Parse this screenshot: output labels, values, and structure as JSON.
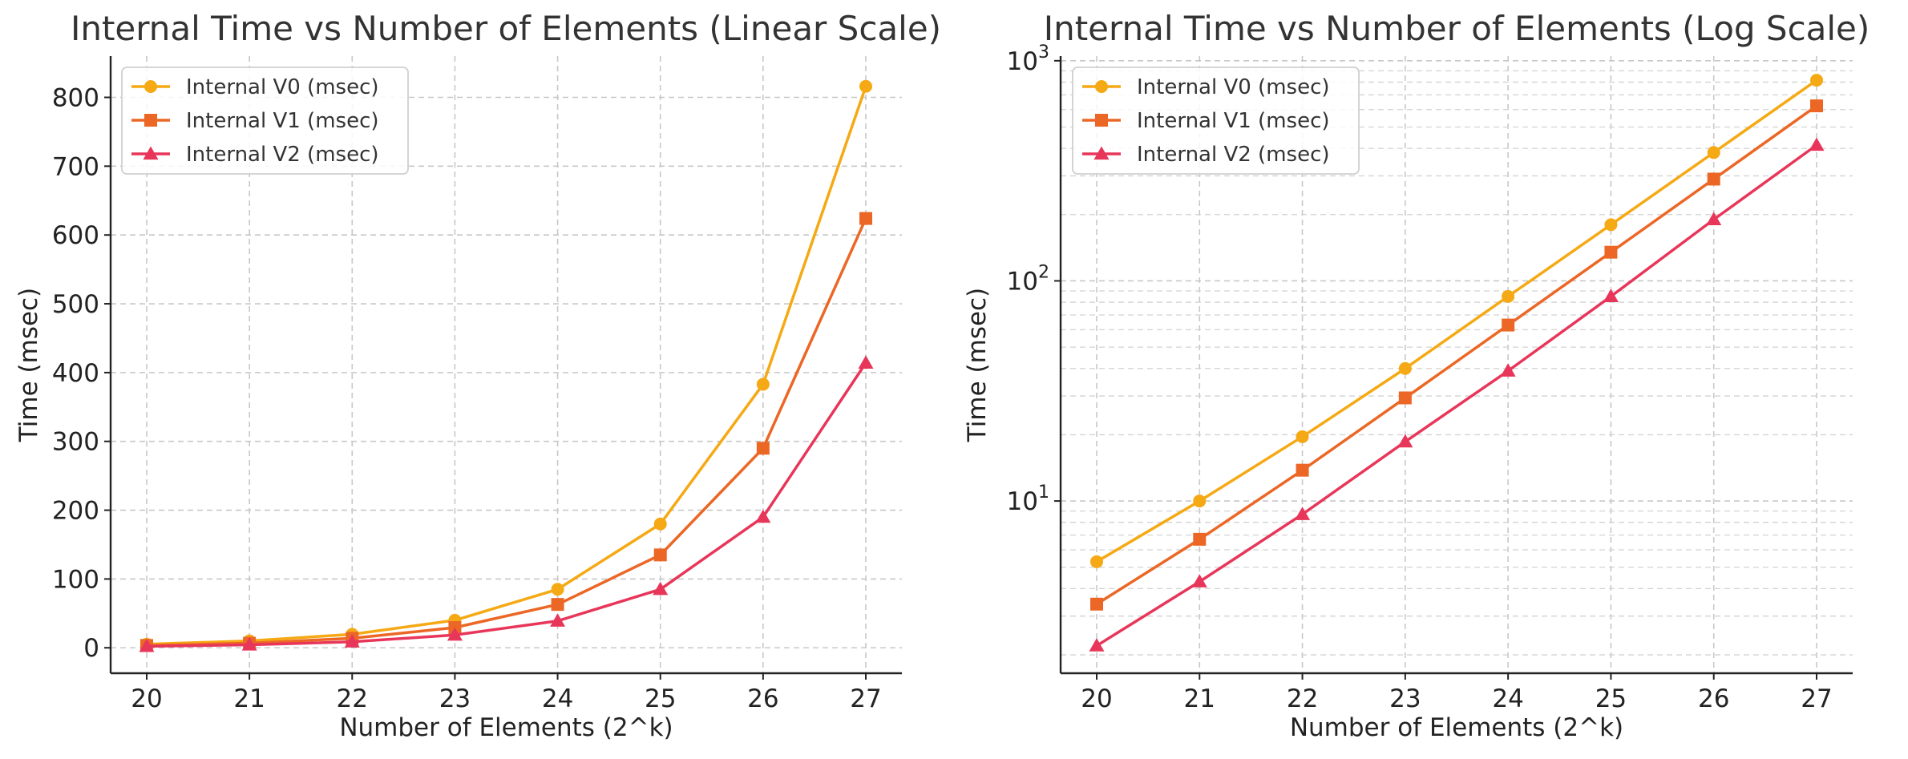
{
  "chart_data": [
    {
      "type": "line",
      "title": "Internal Time vs Number of Elements (Linear Scale)",
      "xlabel": "Number of Elements (2^k)",
      "ylabel": "Time (msec)",
      "x": [
        20,
        21,
        22,
        23,
        24,
        25,
        26,
        27
      ],
      "xticks": [
        "20",
        "21",
        "22",
        "23",
        "24",
        "25",
        "26",
        "27"
      ],
      "yscale": "linear",
      "ylim": [
        -37,
        860
      ],
      "yticks": [
        0,
        100,
        200,
        300,
        400,
        500,
        600,
        700,
        800
      ],
      "ytick_labels": [
        "0",
        "100",
        "200",
        "300",
        "400",
        "500",
        "600",
        "700",
        "800"
      ],
      "grid": true,
      "legend": "top-left",
      "series": [
        {
          "name": "Internal V0 (msec)",
          "color": "#F5A914",
          "marker": "circle",
          "values": [
            5.3,
            10,
            19.6,
            40,
            85,
            180,
            383,
            816
          ]
        },
        {
          "name": "Internal V1 (msec)",
          "color": "#EC6725",
          "marker": "square",
          "values": [
            3.4,
            6.7,
            13.8,
            29.4,
            63,
            135,
            290,
            624
          ]
        },
        {
          "name": "Internal V2 (msec)",
          "color": "#E8365A",
          "marker": "triangle",
          "values": [
            2.2,
            4.3,
            8.7,
            18.6,
            39,
            85,
            190,
            414
          ]
        }
      ]
    },
    {
      "type": "line",
      "title": "Internal Time vs Number of Elements (Log Scale)",
      "xlabel": "Number of Elements (2^k)",
      "ylabel": "Time (msec)",
      "x": [
        20,
        21,
        22,
        23,
        24,
        25,
        26,
        27
      ],
      "xticks": [
        "20",
        "21",
        "22",
        "23",
        "24",
        "25",
        "26",
        "27"
      ],
      "yscale": "log",
      "ylim": [
        1.65,
        1050
      ],
      "yticks": [
        10,
        100,
        1000
      ],
      "ytick_labels": [
        {
          "base": "10",
          "exp": "1"
        },
        {
          "base": "10",
          "exp": "2"
        },
        {
          "base": "10",
          "exp": "3"
        }
      ],
      "grid": true,
      "legend": "top-left",
      "series": [
        {
          "name": "Internal V0 (msec)",
          "color": "#F5A914",
          "marker": "circle",
          "values": [
            5.3,
            10,
            19.6,
            40,
            85,
            180,
            383,
            816
          ]
        },
        {
          "name": "Internal V1 (msec)",
          "color": "#EC6725",
          "marker": "square",
          "values": [
            3.4,
            6.7,
            13.8,
            29.4,
            63,
            135,
            290,
            624
          ]
        },
        {
          "name": "Internal V2 (msec)",
          "color": "#E8365A",
          "marker": "triangle",
          "values": [
            2.2,
            4.3,
            8.7,
            18.6,
            39,
            85,
            190,
            414
          ]
        }
      ]
    }
  ]
}
